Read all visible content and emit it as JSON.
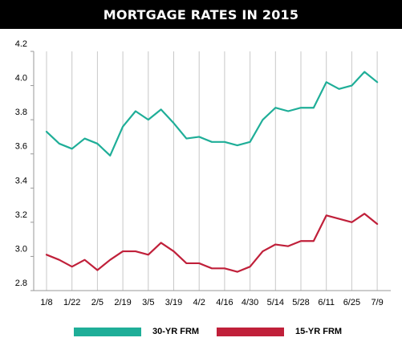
{
  "chart_data": {
    "type": "line",
    "title": "MORTGAGE RATES IN 2015",
    "xlabel": "",
    "ylabel": "",
    "x": [
      "1/8",
      "1/15",
      "1/22",
      "1/29",
      "2/5",
      "2/12",
      "2/19",
      "2/26",
      "3/5",
      "3/12",
      "3/19",
      "3/26",
      "4/2",
      "4/9",
      "4/16",
      "4/23",
      "4/30",
      "5/7",
      "5/14",
      "5/21",
      "5/28",
      "6/4",
      "6/11",
      "6/18",
      "6/25",
      "7/2",
      "7/9"
    ],
    "x_tick_labels": [
      "1/8",
      "1/22",
      "2/5",
      "2/19",
      "3/5",
      "3/19",
      "4/2",
      "4/16",
      "4/30",
      "5/14",
      "5/28",
      "6/11",
      "6/25",
      "7/9"
    ],
    "y_ticks": [
      "4.2",
      "4.0",
      "3.8",
      "3.6",
      "3.4",
      "3.2",
      "3.0",
      "2.8"
    ],
    "ylim": [
      2.8,
      4.2
    ],
    "grid": "vertical lines at labeled weeks",
    "legend_position": "bottom",
    "series": [
      {
        "name": "30-YR FRM",
        "color": "#1fae98",
        "values": [
          3.73,
          3.66,
          3.63,
          3.69,
          3.66,
          3.59,
          3.76,
          3.85,
          3.8,
          3.86,
          3.78,
          3.69,
          3.7,
          3.67,
          3.67,
          3.65,
          3.67,
          3.8,
          3.87,
          3.85,
          3.87,
          3.87,
          4.02,
          3.98,
          4.0,
          4.08,
          4.02
        ]
      },
      {
        "name": "15-YR FRM",
        "color": "#c0203a",
        "values": [
          3.01,
          2.98,
          2.94,
          2.98,
          2.92,
          2.98,
          3.03,
          3.03,
          3.01,
          3.08,
          3.03,
          2.96,
          2.96,
          2.93,
          2.93,
          2.91,
          2.94,
          3.03,
          3.07,
          3.06,
          3.09,
          3.09,
          3.24,
          3.22,
          3.2,
          3.25,
          3.19
        ]
      }
    ]
  }
}
